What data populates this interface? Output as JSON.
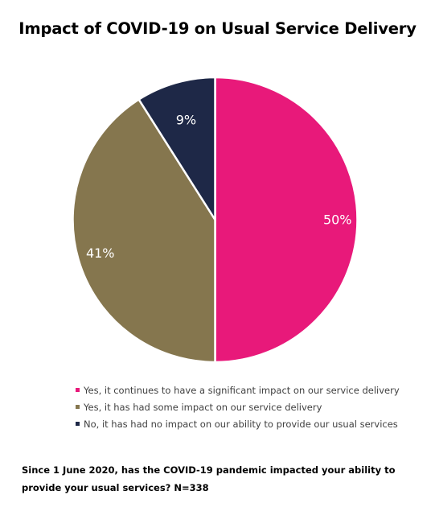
{
  "chart_data": {
    "type": "pie",
    "title": "Impact of COVID-19 on Usual Service Delivery",
    "categories": [
      "Yes, it continues to have a significant impact on our service delivery",
      "Yes, it has had some impact on our service delivery",
      "No, it has had no impact on our ability to provide our usual services"
    ],
    "values": [
      50,
      41,
      9
    ],
    "labels": [
      "50%",
      "41%",
      "9%"
    ],
    "colors": [
      "#E8197A",
      "#85764E",
      "#1E2847"
    ],
    "legend_position": "bottom"
  },
  "footnote": "Since 1 June 2020, has the COVID-19 pandemic impacted your ability to provide your usual services? N=338"
}
